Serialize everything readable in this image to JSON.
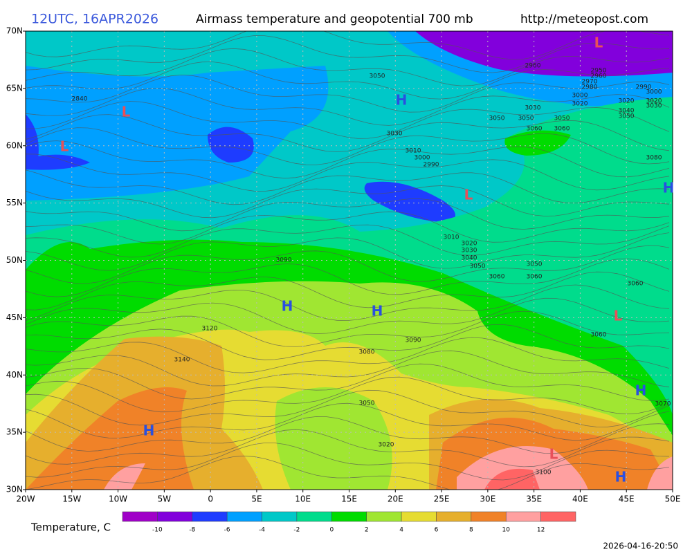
{
  "header": {
    "time": "12UTC, 16APR2026",
    "title": "Airmass temperature and geopotential 700 mb",
    "url": "http://meteopost.com"
  },
  "lat_labels": [
    "70N",
    "65N",
    "60N",
    "55N",
    "50N",
    "45N",
    "40N",
    "35N",
    "30N"
  ],
  "lon_labels": [
    "20W",
    "15W",
    "10W",
    "5W",
    "0",
    "5E",
    "10E",
    "15E",
    "20E",
    "25E",
    "30E",
    "35E",
    "40E",
    "45E",
    "50E"
  ],
  "colorbar": {
    "label": "Temperature, C",
    "ticks": [
      -10,
      -8,
      -6,
      -4,
      -2,
      0,
      2,
      4,
      6,
      8,
      10,
      12
    ],
    "colors": [
      "#a000c8",
      "#8200dc",
      "#1e3cff",
      "#00a0ff",
      "#00c8c8",
      "#00dc8c",
      "#00dc00",
      "#a0e632",
      "#e6dc32",
      "#e6af2d",
      "#f08228",
      "#ffa0a0",
      "#ff6464"
    ]
  },
  "contour_labels": [
    "2840",
    "3050",
    "2960",
    "2950",
    "2960",
    "2970",
    "2980",
    "3000",
    "3020",
    "2990",
    "3000",
    "3020",
    "3020",
    "3030",
    "3040",
    "3050",
    "3030",
    "3050",
    "3050",
    "3050",
    "3060",
    "3060",
    "3030",
    "3010",
    "3000",
    "2990",
    "3080",
    "3010",
    "3020",
    "3030",
    "3040",
    "3050",
    "3050",
    "3060",
    "3060",
    "3090",
    "3060",
    "3120",
    "3060",
    "3090",
    "3140",
    "3080",
    "3050",
    "3070",
    "3020",
    "3100"
  ],
  "pressure_centers": [
    "L",
    "L",
    "L",
    "L",
    "L",
    "L",
    "H",
    "H",
    "H",
    "H",
    "H",
    "H",
    "H"
  ],
  "timestamp": "2026-04-16-20:50"
}
